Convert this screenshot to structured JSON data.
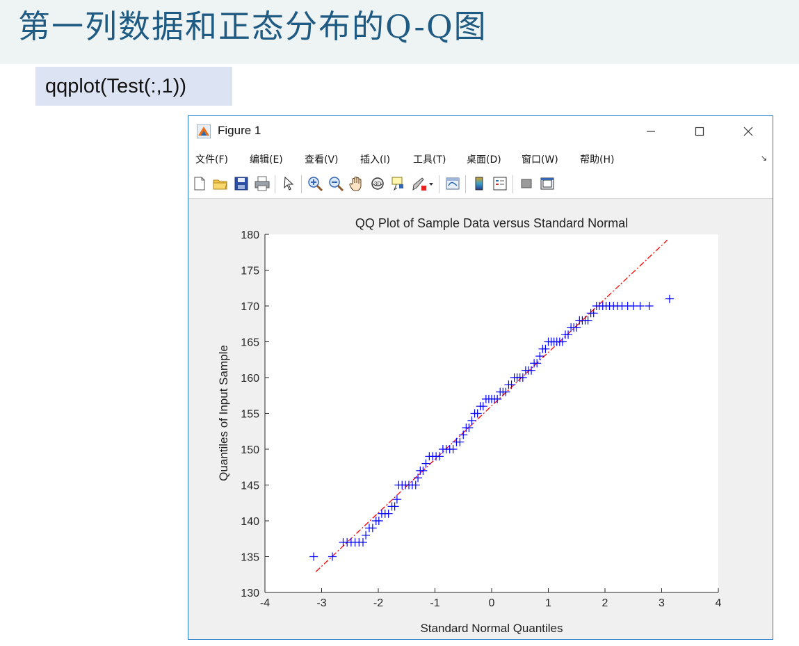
{
  "slide": {
    "title": "第一列数据和正态分布的Q-Q图",
    "code": "qqplot(Test(:,1))"
  },
  "window": {
    "title": "Figure 1",
    "controls": {
      "minimize": "minimize-icon",
      "maximize": "maximize-icon",
      "close": "close-icon"
    },
    "menu": [
      "文件(F)",
      "编辑(E)",
      "查看(V)",
      "插入(I)",
      "工具(T)",
      "桌面(D)",
      "窗口(W)",
      "帮助(H)"
    ],
    "toolbar_icons": [
      "new-figure-icon",
      "open-file-icon",
      "save-icon",
      "print-icon",
      "select-arrow-icon",
      "zoom-in-icon",
      "zoom-out-icon",
      "pan-hand-icon",
      "rotate-3d-icon",
      "data-cursor-icon",
      "brush-icon",
      "brush-dropdown-icon",
      "link-plot-icon",
      "colorbar-icon",
      "legend-icon",
      "hide-plot-tools-icon",
      "show-plot-tools-icon"
    ]
  },
  "colors": {
    "slide_title": "#1f5a82",
    "header_bg": "#eef3f4",
    "code_bg": "#dce3f3",
    "window_border": "#1e78c8",
    "sample_marker": "#0000ff",
    "reference_line": "#ff0000"
  },
  "chart_data": {
    "type": "scatter",
    "title": "QQ Plot of Sample Data versus Standard Normal",
    "xlabel": "Standard Normal Quantiles",
    "ylabel": "Quantiles of Input Sample",
    "xlim": [
      -4,
      4
    ],
    "ylim": [
      130,
      180
    ],
    "xticks": [
      -4,
      -3,
      -2,
      -1,
      0,
      1,
      2,
      3,
      4
    ],
    "yticks": [
      130,
      135,
      140,
      145,
      150,
      155,
      160,
      165,
      170,
      175,
      180
    ],
    "marker": "+",
    "reference_line": {
      "style": "dash-dot",
      "x": [
        -3.1,
        3.1
      ],
      "y": [
        132.9,
        179.2
      ]
    },
    "series": [
      {
        "points": [
          [
            -3.14,
            135
          ],
          [
            -2.81,
            135
          ],
          [
            -2.62,
            137
          ],
          [
            -2.55,
            137
          ],
          [
            -2.48,
            137
          ],
          [
            -2.41,
            137
          ],
          [
            -2.34,
            137
          ],
          [
            -2.27,
            137
          ],
          [
            -2.22,
            138
          ],
          [
            -2.16,
            139
          ],
          [
            -2.1,
            139
          ],
          [
            -2.04,
            140
          ],
          [
            -1.99,
            140
          ],
          [
            -1.94,
            141
          ],
          [
            -1.88,
            141
          ],
          [
            -1.82,
            141
          ],
          [
            -1.76,
            142
          ],
          [
            -1.71,
            142
          ],
          [
            -1.67,
            143
          ],
          [
            -1.64,
            145
          ],
          [
            -1.58,
            145
          ],
          [
            -1.52,
            145
          ],
          [
            -1.46,
            145
          ],
          [
            -1.4,
            145
          ],
          [
            -1.34,
            145
          ],
          [
            -1.3,
            146
          ],
          [
            -1.26,
            147
          ],
          [
            -1.21,
            147
          ],
          [
            -1.16,
            148
          ],
          [
            -1.1,
            149
          ],
          [
            -1.04,
            149
          ],
          [
            -0.98,
            149
          ],
          [
            -0.92,
            149
          ],
          [
            -0.86,
            150
          ],
          [
            -0.8,
            150
          ],
          [
            -0.74,
            150
          ],
          [
            -0.68,
            150
          ],
          [
            -0.62,
            151
          ],
          [
            -0.56,
            151
          ],
          [
            -0.5,
            152
          ],
          [
            -0.45,
            153
          ],
          [
            -0.4,
            153
          ],
          [
            -0.35,
            154
          ],
          [
            -0.3,
            155
          ],
          [
            -0.25,
            155
          ],
          [
            -0.2,
            156
          ],
          [
            -0.15,
            156
          ],
          [
            -0.1,
            157
          ],
          [
            -0.05,
            157
          ],
          [
            0.0,
            157
          ],
          [
            0.05,
            157
          ],
          [
            0.1,
            157
          ],
          [
            0.15,
            158
          ],
          [
            0.2,
            158
          ],
          [
            0.25,
            158
          ],
          [
            0.3,
            159
          ],
          [
            0.35,
            159
          ],
          [
            0.4,
            160
          ],
          [
            0.45,
            160
          ],
          [
            0.5,
            160
          ],
          [
            0.55,
            160
          ],
          [
            0.6,
            161
          ],
          [
            0.65,
            161
          ],
          [
            0.7,
            161
          ],
          [
            0.75,
            162
          ],
          [
            0.8,
            162
          ],
          [
            0.85,
            163
          ],
          [
            0.9,
            164
          ],
          [
            0.95,
            164
          ],
          [
            1.0,
            165
          ],
          [
            1.05,
            165
          ],
          [
            1.1,
            165
          ],
          [
            1.15,
            165
          ],
          [
            1.2,
            165
          ],
          [
            1.25,
            165
          ],
          [
            1.3,
            166
          ],
          [
            1.35,
            166
          ],
          [
            1.4,
            167
          ],
          [
            1.45,
            167
          ],
          [
            1.5,
            167
          ],
          [
            1.55,
            168
          ],
          [
            1.6,
            168
          ],
          [
            1.65,
            168
          ],
          [
            1.7,
            168
          ],
          [
            1.75,
            169
          ],
          [
            1.8,
            169
          ],
          [
            1.85,
            170
          ],
          [
            1.9,
            170
          ],
          [
            1.96,
            170
          ],
          [
            2.02,
            170
          ],
          [
            2.08,
            170
          ],
          [
            2.15,
            170
          ],
          [
            2.22,
            170
          ],
          [
            2.3,
            170
          ],
          [
            2.4,
            170
          ],
          [
            2.5,
            170
          ],
          [
            2.62,
            170
          ],
          [
            2.78,
            170
          ],
          [
            3.14,
            171
          ]
        ]
      }
    ]
  }
}
